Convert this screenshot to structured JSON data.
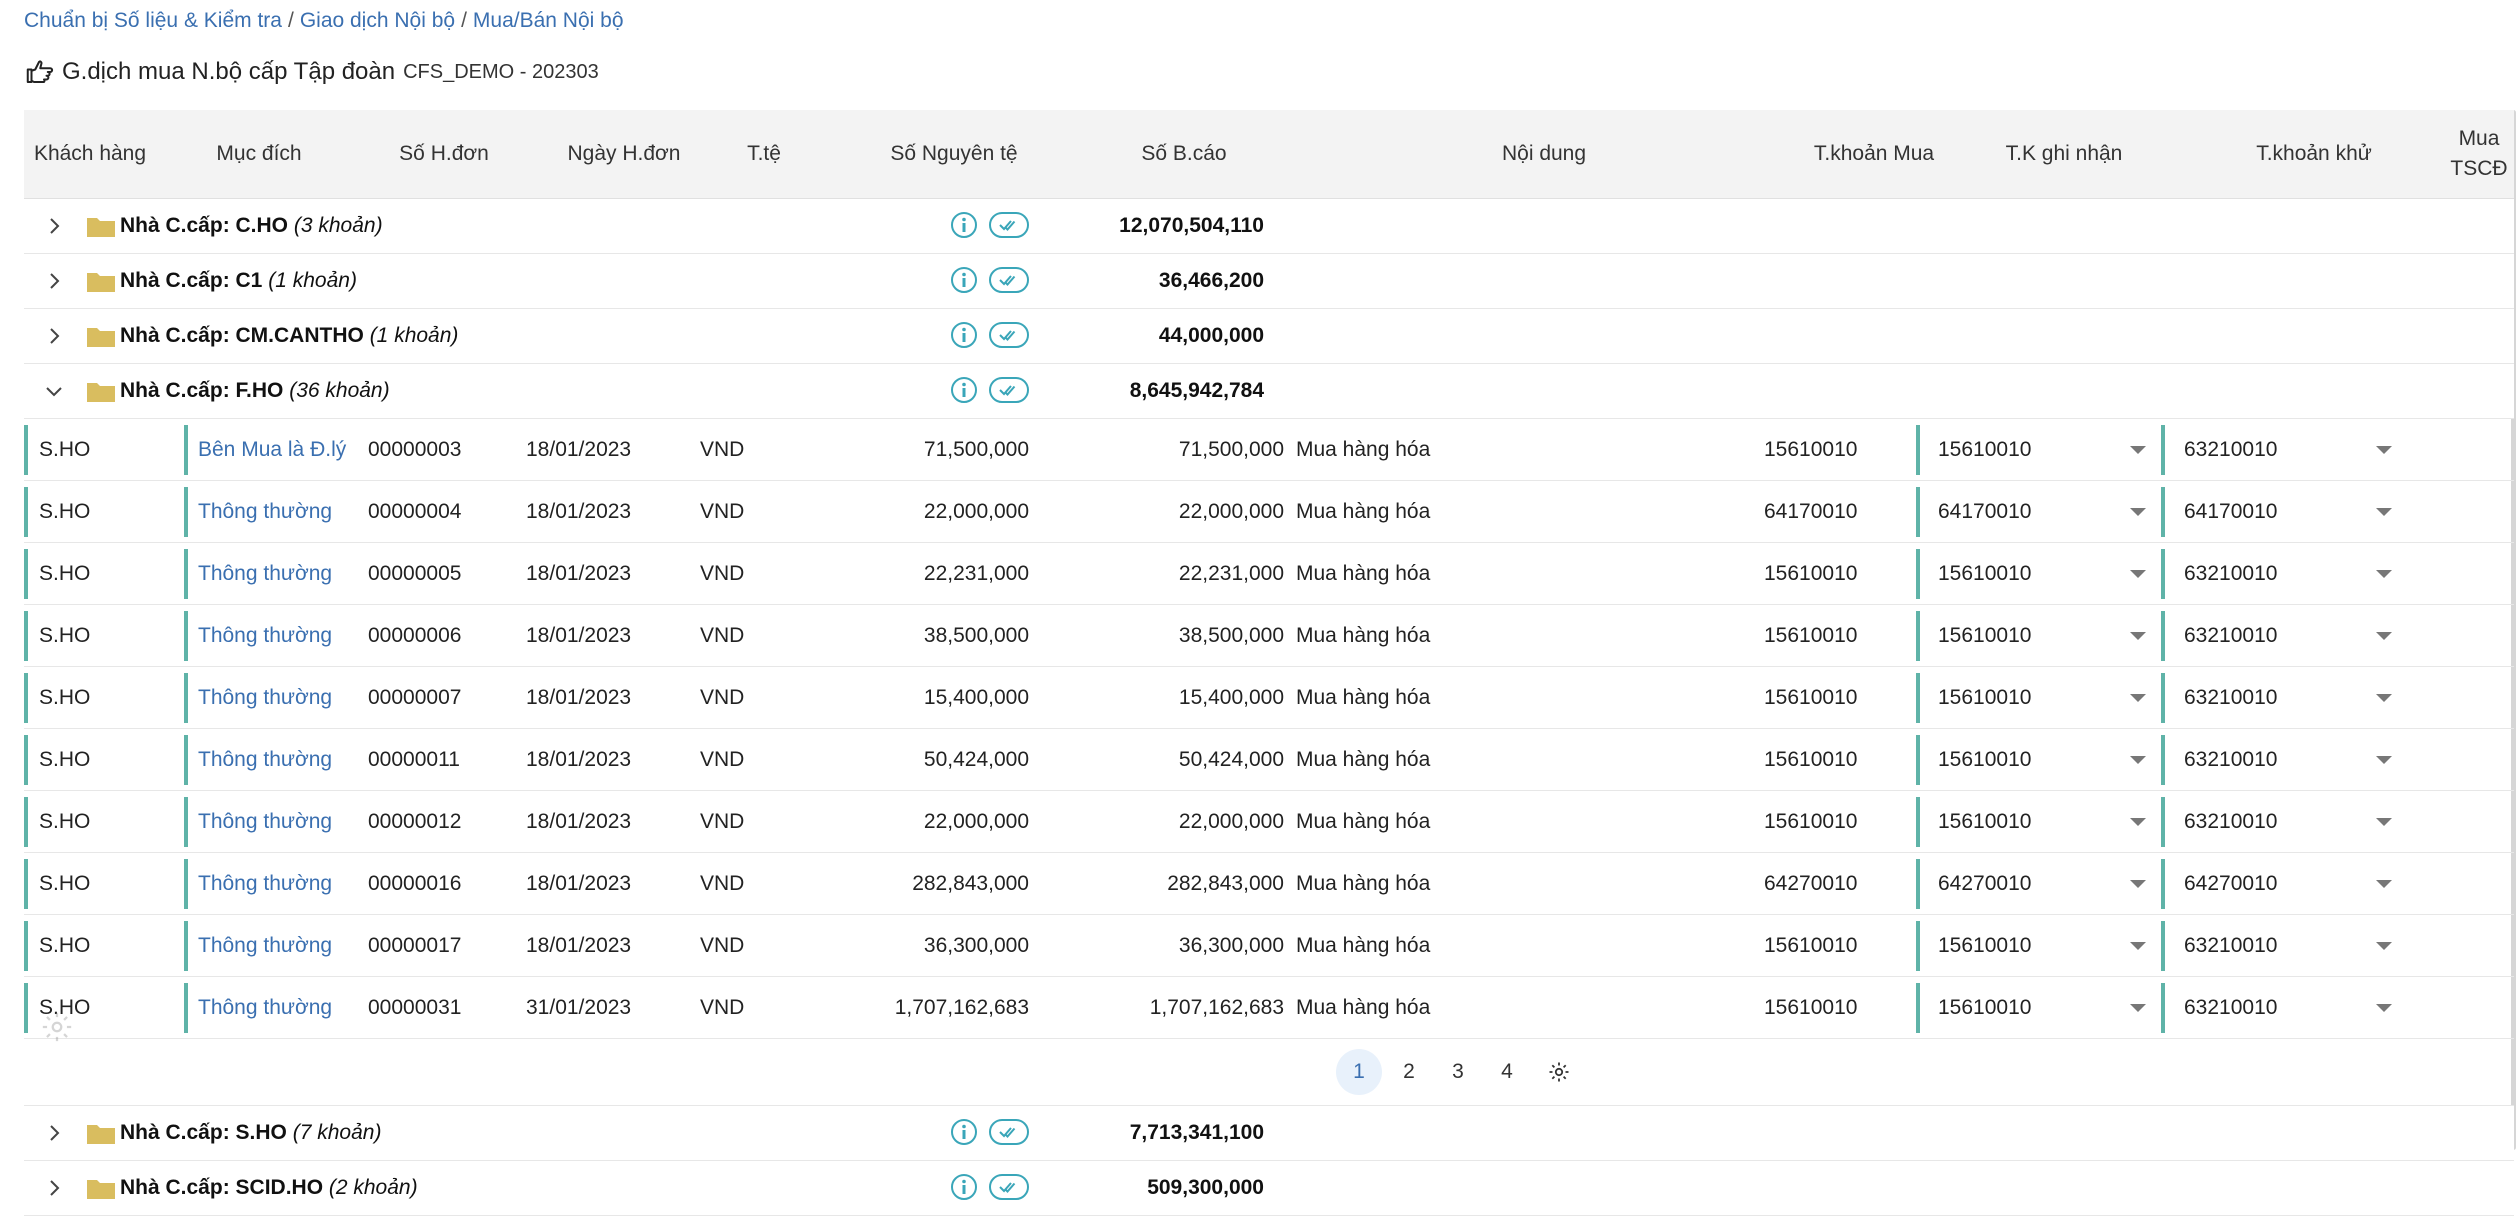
{
  "breadcrumb": {
    "item1": "Chuẩn bị Số liệu & Kiểm tra",
    "item2": "Giao dịch Nội bộ",
    "item3": "Mua/Bán Nội bộ",
    "sep": "/"
  },
  "page": {
    "title": "G.dịch mua N.bộ cấp Tập đoàn",
    "code": "CFS_DEMO - 202303"
  },
  "columns": {
    "customer": "Khách hàng",
    "purpose": "Mục đích",
    "invoice_no": "Số H.đơn",
    "invoice_date": "Ngày H.đơn",
    "currency": "T.tệ",
    "orig_amount": "Số Nguyên tệ",
    "report_amount": "Số B.cáo",
    "content": "Nội dung",
    "buy_account": "T.khoản Mua",
    "record_account": "T.K ghi nhận",
    "elim_account": "T.khoản khử",
    "buy_fixed_asset_1": "Mua",
    "buy_fixed_asset_2": "TSCĐ"
  },
  "groups": {
    "g0": {
      "label": "Nhà C.cấp: C.HO",
      "count": "(3 khoản)",
      "total": "12,070,504,110"
    },
    "g1": {
      "label": "Nhà C.cấp: C1",
      "count": "(1 khoản)",
      "total": "36,466,200"
    },
    "g2": {
      "label": "Nhà C.cấp: CM.CANTHO",
      "count": "(1 khoản)",
      "total": "44,000,000"
    },
    "g3": {
      "label": "Nhà C.cấp: F.HO",
      "count": "(36 khoản)",
      "total": "8,645,942,784"
    },
    "g4": {
      "label": "Nhà C.cấp: S.HO",
      "count": "(7 khoản)",
      "total": "7,713,341,100"
    },
    "g5": {
      "label": "Nhà C.cấp: SCID.HO",
      "count": "(2 khoản)",
      "total": "509,300,000"
    }
  },
  "rows": [
    {
      "customer": "S.HO",
      "purpose": "Bên Mua là Đ.lý",
      "invoice_no": "00000003",
      "invoice_date": "18/01/2023",
      "currency": "VND",
      "orig": "71,500,000",
      "report": "71,500,000",
      "content": "Mua hàng hóa",
      "buy_acc": "15610010",
      "rec_acc": "15610010",
      "elim_acc": "63210010"
    },
    {
      "customer": "S.HO",
      "purpose": "Thông thường",
      "invoice_no": "00000004",
      "invoice_date": "18/01/2023",
      "currency": "VND",
      "orig": "22,000,000",
      "report": "22,000,000",
      "content": "Mua hàng hóa",
      "buy_acc": "64170010",
      "rec_acc": "64170010",
      "elim_acc": "64170010"
    },
    {
      "customer": "S.HO",
      "purpose": "Thông thường",
      "invoice_no": "00000005",
      "invoice_date": "18/01/2023",
      "currency": "VND",
      "orig": "22,231,000",
      "report": "22,231,000",
      "content": "Mua hàng hóa",
      "buy_acc": "15610010",
      "rec_acc": "15610010",
      "elim_acc": "63210010"
    },
    {
      "customer": "S.HO",
      "purpose": "Thông thường",
      "invoice_no": "00000006",
      "invoice_date": "18/01/2023",
      "currency": "VND",
      "orig": "38,500,000",
      "report": "38,500,000",
      "content": "Mua hàng hóa",
      "buy_acc": "15610010",
      "rec_acc": "15610010",
      "elim_acc": "63210010"
    },
    {
      "customer": "S.HO",
      "purpose": "Thông thường",
      "invoice_no": "00000007",
      "invoice_date": "18/01/2023",
      "currency": "VND",
      "orig": "15,400,000",
      "report": "15,400,000",
      "content": "Mua hàng hóa",
      "buy_acc": "15610010",
      "rec_acc": "15610010",
      "elim_acc": "63210010"
    },
    {
      "customer": "S.HO",
      "purpose": "Thông thường",
      "invoice_no": "00000011",
      "invoice_date": "18/01/2023",
      "currency": "VND",
      "orig": "50,424,000",
      "report": "50,424,000",
      "content": "Mua hàng hóa",
      "buy_acc": "15610010",
      "rec_acc": "15610010",
      "elim_acc": "63210010"
    },
    {
      "customer": "S.HO",
      "purpose": "Thông thường",
      "invoice_no": "00000012",
      "invoice_date": "18/01/2023",
      "currency": "VND",
      "orig": "22,000,000",
      "report": "22,000,000",
      "content": "Mua hàng hóa",
      "buy_acc": "15610010",
      "rec_acc": "15610010",
      "elim_acc": "63210010"
    },
    {
      "customer": "S.HO",
      "purpose": "Thông thường",
      "invoice_no": "00000016",
      "invoice_date": "18/01/2023",
      "currency": "VND",
      "orig": "282,843,000",
      "report": "282,843,000",
      "content": "Mua hàng hóa",
      "buy_acc": "64270010",
      "rec_acc": "64270010",
      "elim_acc": "64270010"
    },
    {
      "customer": "S.HO",
      "purpose": "Thông thường",
      "invoice_no": "00000017",
      "invoice_date": "18/01/2023",
      "currency": "VND",
      "orig": "36,300,000",
      "report": "36,300,000",
      "content": "Mua hàng hóa",
      "buy_acc": "15610010",
      "rec_acc": "15610010",
      "elim_acc": "63210010"
    },
    {
      "customer": "S.HO",
      "purpose": "Thông thường",
      "invoice_no": "00000031",
      "invoice_date": "31/01/2023",
      "currency": "VND",
      "orig": "1,707,162,683",
      "report": "1,707,162,683",
      "content": "Mua hàng hóa",
      "buy_acc": "15610010",
      "rec_acc": "15610010",
      "elim_acc": "63210010"
    }
  ],
  "pagination": {
    "p1": "1",
    "p2": "2",
    "p3": "3",
    "p4": "4",
    "current": "1"
  },
  "colors": {
    "accent": "#3a6fb0",
    "row_bar": "#5fb3a8",
    "folder": "#d9bd5f",
    "icon_teal": "#3aa6b9"
  },
  "icons": {
    "title": "hand-pointing-icon",
    "expand": "chevron-right-icon",
    "collapse": "chevron-down-icon",
    "folder": "folder-icon",
    "info": "info-icon",
    "approve": "double-check-icon",
    "settings": "gear-icon",
    "dropdown": "caret-down-icon"
  }
}
